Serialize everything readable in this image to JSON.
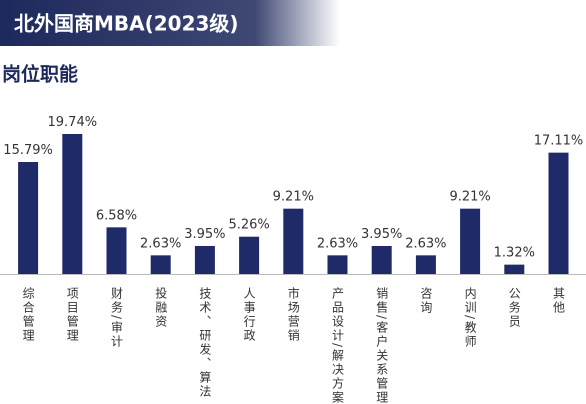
{
  "chart_data": {
    "type": "bar",
    "title": "北外国商MBA(2023级)",
    "subtitle": "岗位职能",
    "categories": [
      "综合管理",
      "项目管理",
      "财务/审计",
      "投融资",
      "技术、研发、算法",
      "人事行政",
      "市场营销",
      "产品设计/解决方案",
      "销售/客户关系管理",
      "咨询",
      "内训/教师",
      "公务员",
      "其他"
    ],
    "values": [
      15.79,
      19.74,
      6.58,
      2.63,
      3.95,
      5.26,
      9.21,
      2.63,
      3.95,
      2.63,
      9.21,
      1.32,
      17.11
    ],
    "value_labels": [
      "15.79%",
      "19.74%",
      "6.58%",
      "2.63%",
      "3.95%",
      "5.26%",
      "9.21%",
      "2.63%",
      "3.95%",
      "2.63%",
      "9.21%",
      "1.32%",
      "17.11%"
    ],
    "color": "#1f2a68"
  }
}
